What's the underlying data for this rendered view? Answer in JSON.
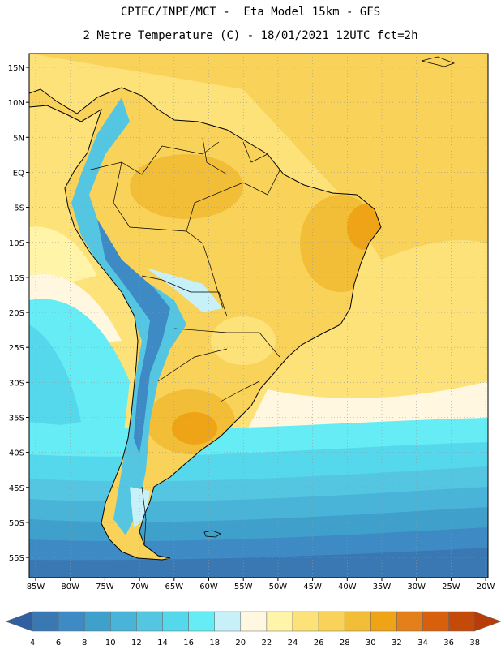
{
  "title": {
    "line1": "CPTEC/INPE/MCT -  Eta Model 15km - GFS",
    "line2": "2 Metre Temperature (C) - 18/01/2021 12UTC fct=2h"
  },
  "axes": {
    "lat_labels": [
      "15N",
      "10N",
      "5N",
      "EQ",
      "5S",
      "10S",
      "15S",
      "20S",
      "25S",
      "30S",
      "35S",
      "40S",
      "45S",
      "50S",
      "55S"
    ],
    "lon_labels": [
      "85W",
      "80W",
      "75W",
      "70W",
      "65W",
      "60W",
      "55W",
      "50W",
      "45W",
      "40W",
      "35W",
      "30W",
      "25W",
      "20W"
    ]
  },
  "colorbar": {
    "ticks": [
      "4",
      "6",
      "8",
      "10",
      "12",
      "14",
      "16",
      "18",
      "20",
      "22",
      "24",
      "26",
      "28",
      "30",
      "32",
      "34",
      "36",
      "38"
    ],
    "colors": [
      "#3a78b4",
      "#3d8ac4",
      "#40a0cc",
      "#49b4d8",
      "#55c6e2",
      "#55d8ec",
      "#66ecf4",
      "#c8f0f8",
      "#fff7e0",
      "#fff4a8",
      "#fde27a",
      "#f9d25a",
      "#f2be38",
      "#eea416",
      "#e4801a",
      "#d8600c",
      "#c44a0a"
    ],
    "low_arrow_color": "#3060a0",
    "high_arrow_color": "#b83c08"
  }
}
